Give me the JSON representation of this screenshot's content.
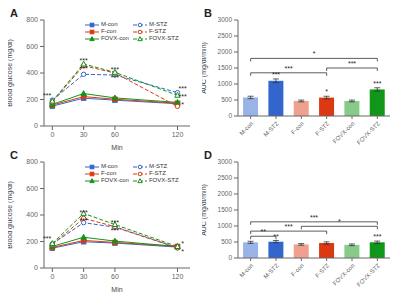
{
  "chart_data": [
    {
      "type": "line",
      "title": "A",
      "x": [
        0,
        30,
        60,
        120
      ],
      "series": [
        {
          "name": "M-con",
          "color": "#3366cc",
          "marker": "square",
          "line_style": "solid",
          "values": [
            150,
            210,
            195,
            168
          ]
        },
        {
          "name": "F-con",
          "color": "#dc3912",
          "marker": "square",
          "line_style": "solid",
          "values": [
            158,
            222,
            202,
            172
          ]
        },
        {
          "name": "FOVX-con",
          "color": "#109618",
          "marker": "triangle",
          "line_style": "solid",
          "values": [
            163,
            245,
            212,
            178
          ]
        },
        {
          "name": "M-STZ",
          "color": "#3366cc",
          "marker": "open circle",
          "line_style": "dashed",
          "values": [
            195,
            390,
            385,
            252
          ]
        },
        {
          "name": "F-STZ",
          "color": "#dc3912",
          "marker": "open circle",
          "line_style": "dashed",
          "values": [
            182,
            455,
            400,
            148
          ]
        },
        {
          "name": "FOVX-STZ",
          "color": "#109618",
          "marker": "open triangle",
          "line_style": "dashed",
          "values": [
            188,
            468,
            405,
            232
          ]
        }
      ],
      "xlabel": "Min",
      "ylabel": "Blood glucose (mg/dl)",
      "xlim": [
        -8,
        132
      ],
      "xticks": [
        0,
        30,
        60,
        120
      ],
      "ylim": [
        0,
        800
      ],
      "yticks": [
        0,
        200,
        400,
        600,
        800
      ],
      "legend": "upper left",
      "grid": false,
      "annotations": [
        {
          "text": "***",
          "x": -5,
          "y": 207
        },
        {
          "text": "***",
          "x": 30,
          "y": 470
        },
        {
          "text": "***",
          "x": 30,
          "y": 423
        },
        {
          "text": "***",
          "x": 60,
          "y": 397
        },
        {
          "text": "***",
          "x": 60,
          "y": 360
        },
        {
          "text": "***",
          "x": 125,
          "y": 257
        },
        {
          "text": "***",
          "x": 125,
          "y": 212
        },
        {
          "text": "*",
          "x": 125,
          "y": 183
        }
      ]
    },
    {
      "type": "bar",
      "title": "B",
      "categories": [
        "M-con",
        "M-STZ",
        "F-con",
        "F-STZ",
        "FOVX-con",
        "FOVX-STZ"
      ],
      "values": [
        580,
        1100,
        470,
        575,
        470,
        830
      ],
      "errors": [
        38,
        58,
        28,
        42,
        28,
        52
      ],
      "colors": [
        "#99b3e6",
        "#3366cc",
        "#f0a08f",
        "#dc3912",
        "#88cb89",
        "#109618"
      ],
      "ylabel": "AUC (mg/dl/min)",
      "ylim": [
        0,
        3000
      ],
      "yticks": [
        0,
        500,
        1000,
        1500,
        2000,
        2500,
        3000
      ],
      "grid": false,
      "annotations": [
        {
          "text": "***",
          "x": "M-STZ",
          "y": 1183
        },
        {
          "text": "*",
          "x": "F-STZ",
          "y": 642
        },
        {
          "text": "***",
          "x": "FOVX-STZ",
          "y": 907
        }
      ],
      "brackets": [
        {
          "from": "M-con",
          "to": "F-STZ",
          "y": 1350,
          "label": "***"
        },
        {
          "from": "F-STZ",
          "to": "FOVX-STZ",
          "y": 1500,
          "label": "***"
        },
        {
          "from": "M-con",
          "to": "FOVX-STZ",
          "y": 1800,
          "label": "*"
        }
      ]
    },
    {
      "type": "line",
      "title": "C",
      "x": [
        0,
        30,
        60,
        120
      ],
      "series": [
        {
          "name": "M-con",
          "color": "#3366cc",
          "marker": "square",
          "line_style": "solid",
          "values": [
            150,
            198,
            188,
            158
          ]
        },
        {
          "name": "F-con",
          "color": "#dc3912",
          "marker": "square",
          "line_style": "solid",
          "values": [
            155,
            208,
            193,
            163
          ]
        },
        {
          "name": "FOVX-con",
          "color": "#109618",
          "marker": "triangle",
          "line_style": "solid",
          "values": [
            163,
            232,
            203,
            162
          ]
        },
        {
          "name": "M-STZ",
          "color": "#3366cc",
          "marker": "open circle",
          "line_style": "dashed",
          "values": [
            182,
            342,
            308,
            152
          ]
        },
        {
          "name": "F-STZ",
          "color": "#dc3912",
          "marker": "open circle",
          "line_style": "dashed",
          "values": [
            178,
            375,
            312,
            153
          ]
        },
        {
          "name": "FOVX-STZ",
          "color": "#109618",
          "marker": "open triangle",
          "line_style": "dashed",
          "values": [
            185,
            412,
            328,
            162
          ]
        }
      ],
      "xlabel": "Min",
      "ylabel": "Blood glucose (mg/dl)",
      "xlim": [
        -8,
        132
      ],
      "xticks": [
        0,
        30,
        60,
        120
      ],
      "ylim": [
        0,
        800
      ],
      "yticks": [
        0,
        200,
        400,
        600,
        800
      ],
      "legend": "upper left",
      "grid": false,
      "annotations": [
        {
          "text": "***",
          "x": -5,
          "y": 194
        },
        {
          "text": "***",
          "x": 30,
          "y": 390
        },
        {
          "text": "***",
          "x": 30,
          "y": 367
        },
        {
          "text": "***",
          "x": 60,
          "y": 320
        },
        {
          "text": "***",
          "x": 60,
          "y": 283
        },
        {
          "text": "*",
          "x": 125,
          "y": 157
        },
        {
          "text": "*",
          "x": 125,
          "y": 142
        }
      ]
    },
    {
      "type": "bar",
      "title": "D",
      "categories": [
        "M-con",
        "M-STZ",
        "F-con",
        "F-STZ",
        "FOVX-con",
        "FOVX-STZ"
      ],
      "values": [
        490,
        510,
        425,
        468,
        412,
        490
      ],
      "errors": [
        32,
        38,
        26,
        36,
        26,
        38
      ],
      "colors": [
        "#99b3e6",
        "#3366cc",
        "#f0a08f",
        "#dc3912",
        "#88cb89",
        "#109618"
      ],
      "ylabel": "AUC (mg/dl/min)",
      "ylim": [
        0,
        3000
      ],
      "yticks": [
        0,
        500,
        1000,
        1500,
        2000,
        2500,
        3000
      ],
      "grid": false,
      "annotations": [
        {
          "text": "**",
          "x": "M-STZ",
          "y": 573
        },
        {
          "text": "***",
          "x": "FOVX-STZ",
          "y": 553
        }
      ],
      "brackets": [
        {
          "from": "M-con",
          "to": "M-STZ",
          "y": 680,
          "label": "**"
        },
        {
          "from": "M-con",
          "to": "F-STZ",
          "y": 840,
          "label": "***"
        },
        {
          "from": "F-con",
          "to": "FOVX-STZ",
          "y": 990,
          "label": "*"
        },
        {
          "from": "M-con",
          "to": "FOVX-STZ",
          "y": 1130,
          "label": "***"
        }
      ]
    }
  ]
}
